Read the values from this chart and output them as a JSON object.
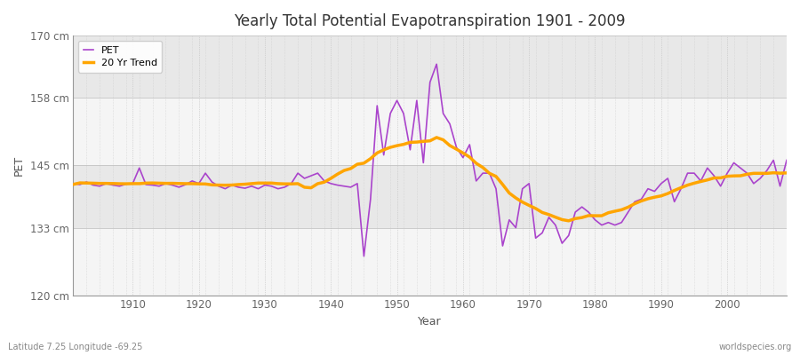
{
  "title": "Yearly Total Potential Evapotranspiration 1901 - 2009",
  "xlabel": "Year",
  "ylabel": "PET",
  "bottom_left_label": "Latitude 7.25 Longitude -69.25",
  "bottom_right_label": "worldspecies.org",
  "ylim": [
    120,
    170
  ],
  "yticks": [
    120,
    133,
    145,
    158,
    170
  ],
  "ytick_labels": [
    "120 cm",
    "133 cm",
    "145 cm",
    "158 cm",
    "170 cm"
  ],
  "xlim": [
    1901,
    2009
  ],
  "xticks": [
    1910,
    1920,
    1930,
    1940,
    1950,
    1960,
    1970,
    1980,
    1990,
    2000
  ],
  "pet_color": "#AA44CC",
  "trend_color": "#FFA500",
  "fig_bg_color": "#FFFFFF",
  "plot_bg_color": "#F0F0F0",
  "band_color_light": "#F5F5F5",
  "band_color_dark": "#E8E8E8",
  "legend_labels": [
    "PET",
    "20 Yr Trend"
  ],
  "years": [
    1901,
    1902,
    1903,
    1904,
    1905,
    1906,
    1907,
    1908,
    1909,
    1910,
    1911,
    1912,
    1913,
    1914,
    1915,
    1916,
    1917,
    1918,
    1919,
    1920,
    1921,
    1922,
    1923,
    1924,
    1925,
    1926,
    1927,
    1928,
    1929,
    1930,
    1931,
    1932,
    1933,
    1934,
    1935,
    1936,
    1937,
    1938,
    1939,
    1940,
    1941,
    1942,
    1943,
    1944,
    1945,
    1946,
    1947,
    1948,
    1949,
    1950,
    1951,
    1952,
    1953,
    1954,
    1955,
    1956,
    1957,
    1958,
    1959,
    1960,
    1961,
    1962,
    1963,
    1964,
    1965,
    1966,
    1967,
    1968,
    1969,
    1970,
    1971,
    1972,
    1973,
    1974,
    1975,
    1976,
    1977,
    1978,
    1979,
    1980,
    1981,
    1982,
    1983,
    1984,
    1985,
    1986,
    1987,
    1988,
    1989,
    1990,
    1991,
    1992,
    1993,
    1994,
    1995,
    1996,
    1997,
    1998,
    1999,
    2000,
    2001,
    2002,
    2003,
    2004,
    2005,
    2006,
    2007,
    2008,
    2009
  ],
  "pet_values": [
    141.5,
    141.3,
    141.8,
    141.2,
    141.0,
    141.5,
    141.2,
    141.0,
    141.4,
    141.5,
    144.5,
    141.3,
    141.2,
    141.0,
    141.5,
    141.2,
    140.8,
    141.3,
    142.0,
    141.5,
    143.5,
    141.8,
    141.0,
    140.5,
    141.2,
    140.8,
    140.6,
    141.0,
    140.5,
    141.2,
    141.0,
    140.5,
    140.8,
    141.5,
    143.5,
    142.5,
    143.0,
    143.5,
    142.0,
    141.5,
    141.2,
    141.0,
    140.8,
    141.5,
    127.5,
    138.5,
    156.5,
    147.0,
    155.0,
    157.5,
    155.0,
    148.0,
    157.5,
    145.5,
    161.0,
    164.5,
    155.0,
    153.0,
    148.5,
    146.5,
    149.0,
    142.0,
    143.5,
    143.5,
    140.5,
    129.5,
    134.5,
    133.0,
    140.5,
    141.5,
    131.0,
    132.0,
    135.0,
    133.5,
    130.0,
    131.5,
    136.0,
    137.0,
    136.0,
    134.5,
    133.5,
    134.0,
    133.5,
    134.0,
    136.0,
    138.0,
    138.5,
    140.5,
    140.0,
    141.5,
    142.5,
    138.0,
    140.5,
    143.5,
    143.5,
    142.0,
    144.5,
    143.0,
    141.0,
    143.5,
    145.5,
    144.5,
    143.5,
    141.5,
    142.5,
    144.0,
    146.0,
    141.0,
    146.0
  ]
}
